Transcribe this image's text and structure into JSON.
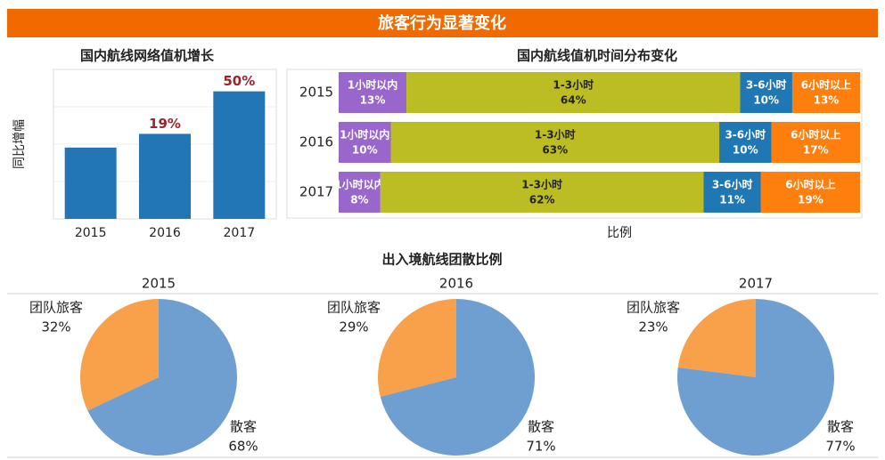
{
  "banner": "旅客行为显著变化",
  "section_title": "出入境航线团散比例",
  "chart_data": [
    {
      "type": "bar",
      "title": "国内航线网络值机增长",
      "ylabel": "同比增幅",
      "categories": [
        "2015",
        "2016",
        "2017"
      ],
      "values": [
        9,
        19,
        50
      ],
      "value_labels": [
        null,
        "19%",
        "50%"
      ],
      "color": "#2276b6",
      "ylim": [
        -43,
        66
      ],
      "grid": true
    },
    {
      "type": "stacked-barh",
      "title": "国内航线值机时间分布变化",
      "xlabel": "比例",
      "categories": [
        "2015",
        "2016",
        "2017"
      ],
      "xlim": [
        0,
        100
      ],
      "series": [
        {
          "name": "1小时以内",
          "color": "#9966cc",
          "values": [
            13,
            10,
            8
          ],
          "value_labels": [
            "13%",
            "10%",
            "8%"
          ]
        },
        {
          "name": "1-3小时",
          "color": "#bcbd22",
          "values": [
            64,
            63,
            62
          ],
          "value_labels": [
            "64%",
            "63%",
            "62%"
          ]
        },
        {
          "name": "3-6小时",
          "color": "#1f78b4",
          "values": [
            10,
            10,
            11
          ],
          "value_labels": [
            "10%",
            "10%",
            "11%"
          ]
        },
        {
          "name": "6小时以上",
          "color": "#ff7f0e",
          "values": [
            13,
            17,
            19
          ],
          "value_labels": [
            "13%",
            "17%",
            "19%"
          ]
        }
      ]
    },
    {
      "type": "pie",
      "title": "2015",
      "categories": [
        "团队旅客",
        "散客"
      ],
      "values": [
        32,
        68
      ],
      "value_labels": [
        "32%",
        "68%"
      ],
      "colors": [
        "#f9a04b",
        "#6f9fd0"
      ]
    },
    {
      "type": "pie",
      "title": "2016",
      "categories": [
        "团队旅客",
        "散客"
      ],
      "values": [
        29,
        71
      ],
      "value_labels": [
        "29%",
        "71%"
      ],
      "colors": [
        "#f9a04b",
        "#6f9fd0"
      ]
    },
    {
      "type": "pie",
      "title": "2017",
      "categories": [
        "团队旅客",
        "散客"
      ],
      "values": [
        23,
        77
      ],
      "value_labels": [
        "23%",
        "77%"
      ],
      "colors": [
        "#f9a04b",
        "#6f9fd0"
      ]
    }
  ]
}
